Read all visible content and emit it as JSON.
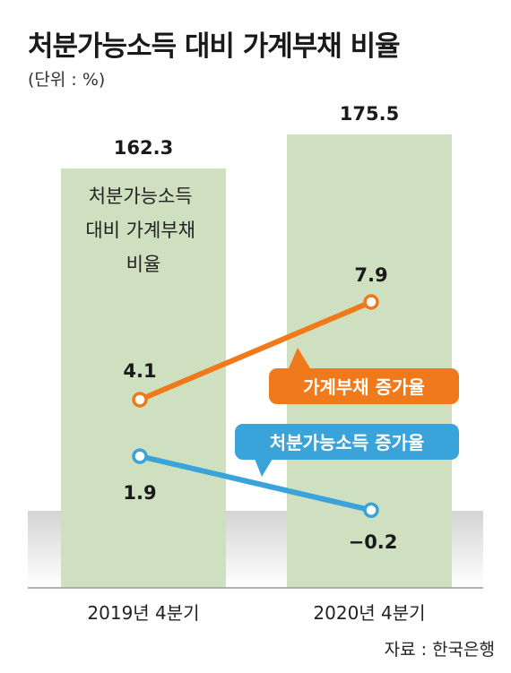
{
  "title": "처분가능소득 대비 가계부채 비율",
  "unit": "(단위 : %)",
  "source": "자료 : 한국은행",
  "chart_data": {
    "type": "bar",
    "categories": [
      "2019년 4분기",
      "2020년 4분기"
    ],
    "bar_series": {
      "name": "처분가능소득\n대비 가계부채\n비율",
      "values": [
        162.3,
        175.5
      ],
      "color": "#cfe0c1"
    },
    "line_series": [
      {
        "name": "가계부채 증가율",
        "values": [
          4.1,
          7.9
        ],
        "color": "#f07a1b"
      },
      {
        "name": "처분가능소득 증가율",
        "values": [
          1.9,
          -0.2
        ],
        "color": "#3aa3da"
      }
    ],
    "value_labels": {
      "bars": [
        "162.3",
        "175.5"
      ],
      "household_debt_growth": [
        "4.1",
        "7.9"
      ],
      "disposable_income_growth": [
        "1.9",
        "−0.2"
      ]
    },
    "grid": false,
    "zero_band_color": "#d9d9d9"
  }
}
